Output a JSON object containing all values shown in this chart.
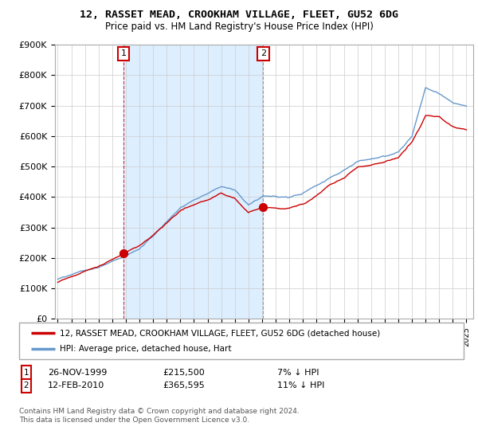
{
  "title": "12, RASSET MEAD, CROOKHAM VILLAGE, FLEET, GU52 6DG",
  "subtitle": "Price paid vs. HM Land Registry's House Price Index (HPI)",
  "red_label": "12, RASSET MEAD, CROOKHAM VILLAGE, FLEET, GU52 6DG (detached house)",
  "blue_label": "HPI: Average price, detached house, Hart",
  "point1_date": "26-NOV-1999",
  "point1_price": 215500,
  "point1_hpi_text": "7% ↓ HPI",
  "point2_date": "12-FEB-2010",
  "point2_price": 365595,
  "point2_hpi_text": "11% ↓ HPI",
  "footnote": "Contains HM Land Registry data © Crown copyright and database right 2024.\nThis data is licensed under the Open Government Licence v3.0.",
  "ylim": [
    0,
    900000
  ],
  "yticks": [
    0,
    100000,
    200000,
    300000,
    400000,
    500000,
    600000,
    700000,
    800000,
    900000
  ],
  "ytick_labels": [
    "£0",
    "£100K",
    "£200K",
    "£300K",
    "£400K",
    "£500K",
    "£600K",
    "£700K",
    "£800K",
    "£900K"
  ],
  "red_color": "#cc0000",
  "blue_color": "#6699cc",
  "fill_color": "#ddeeff",
  "background_color": "#ffffff",
  "grid_color": "#cccccc"
}
